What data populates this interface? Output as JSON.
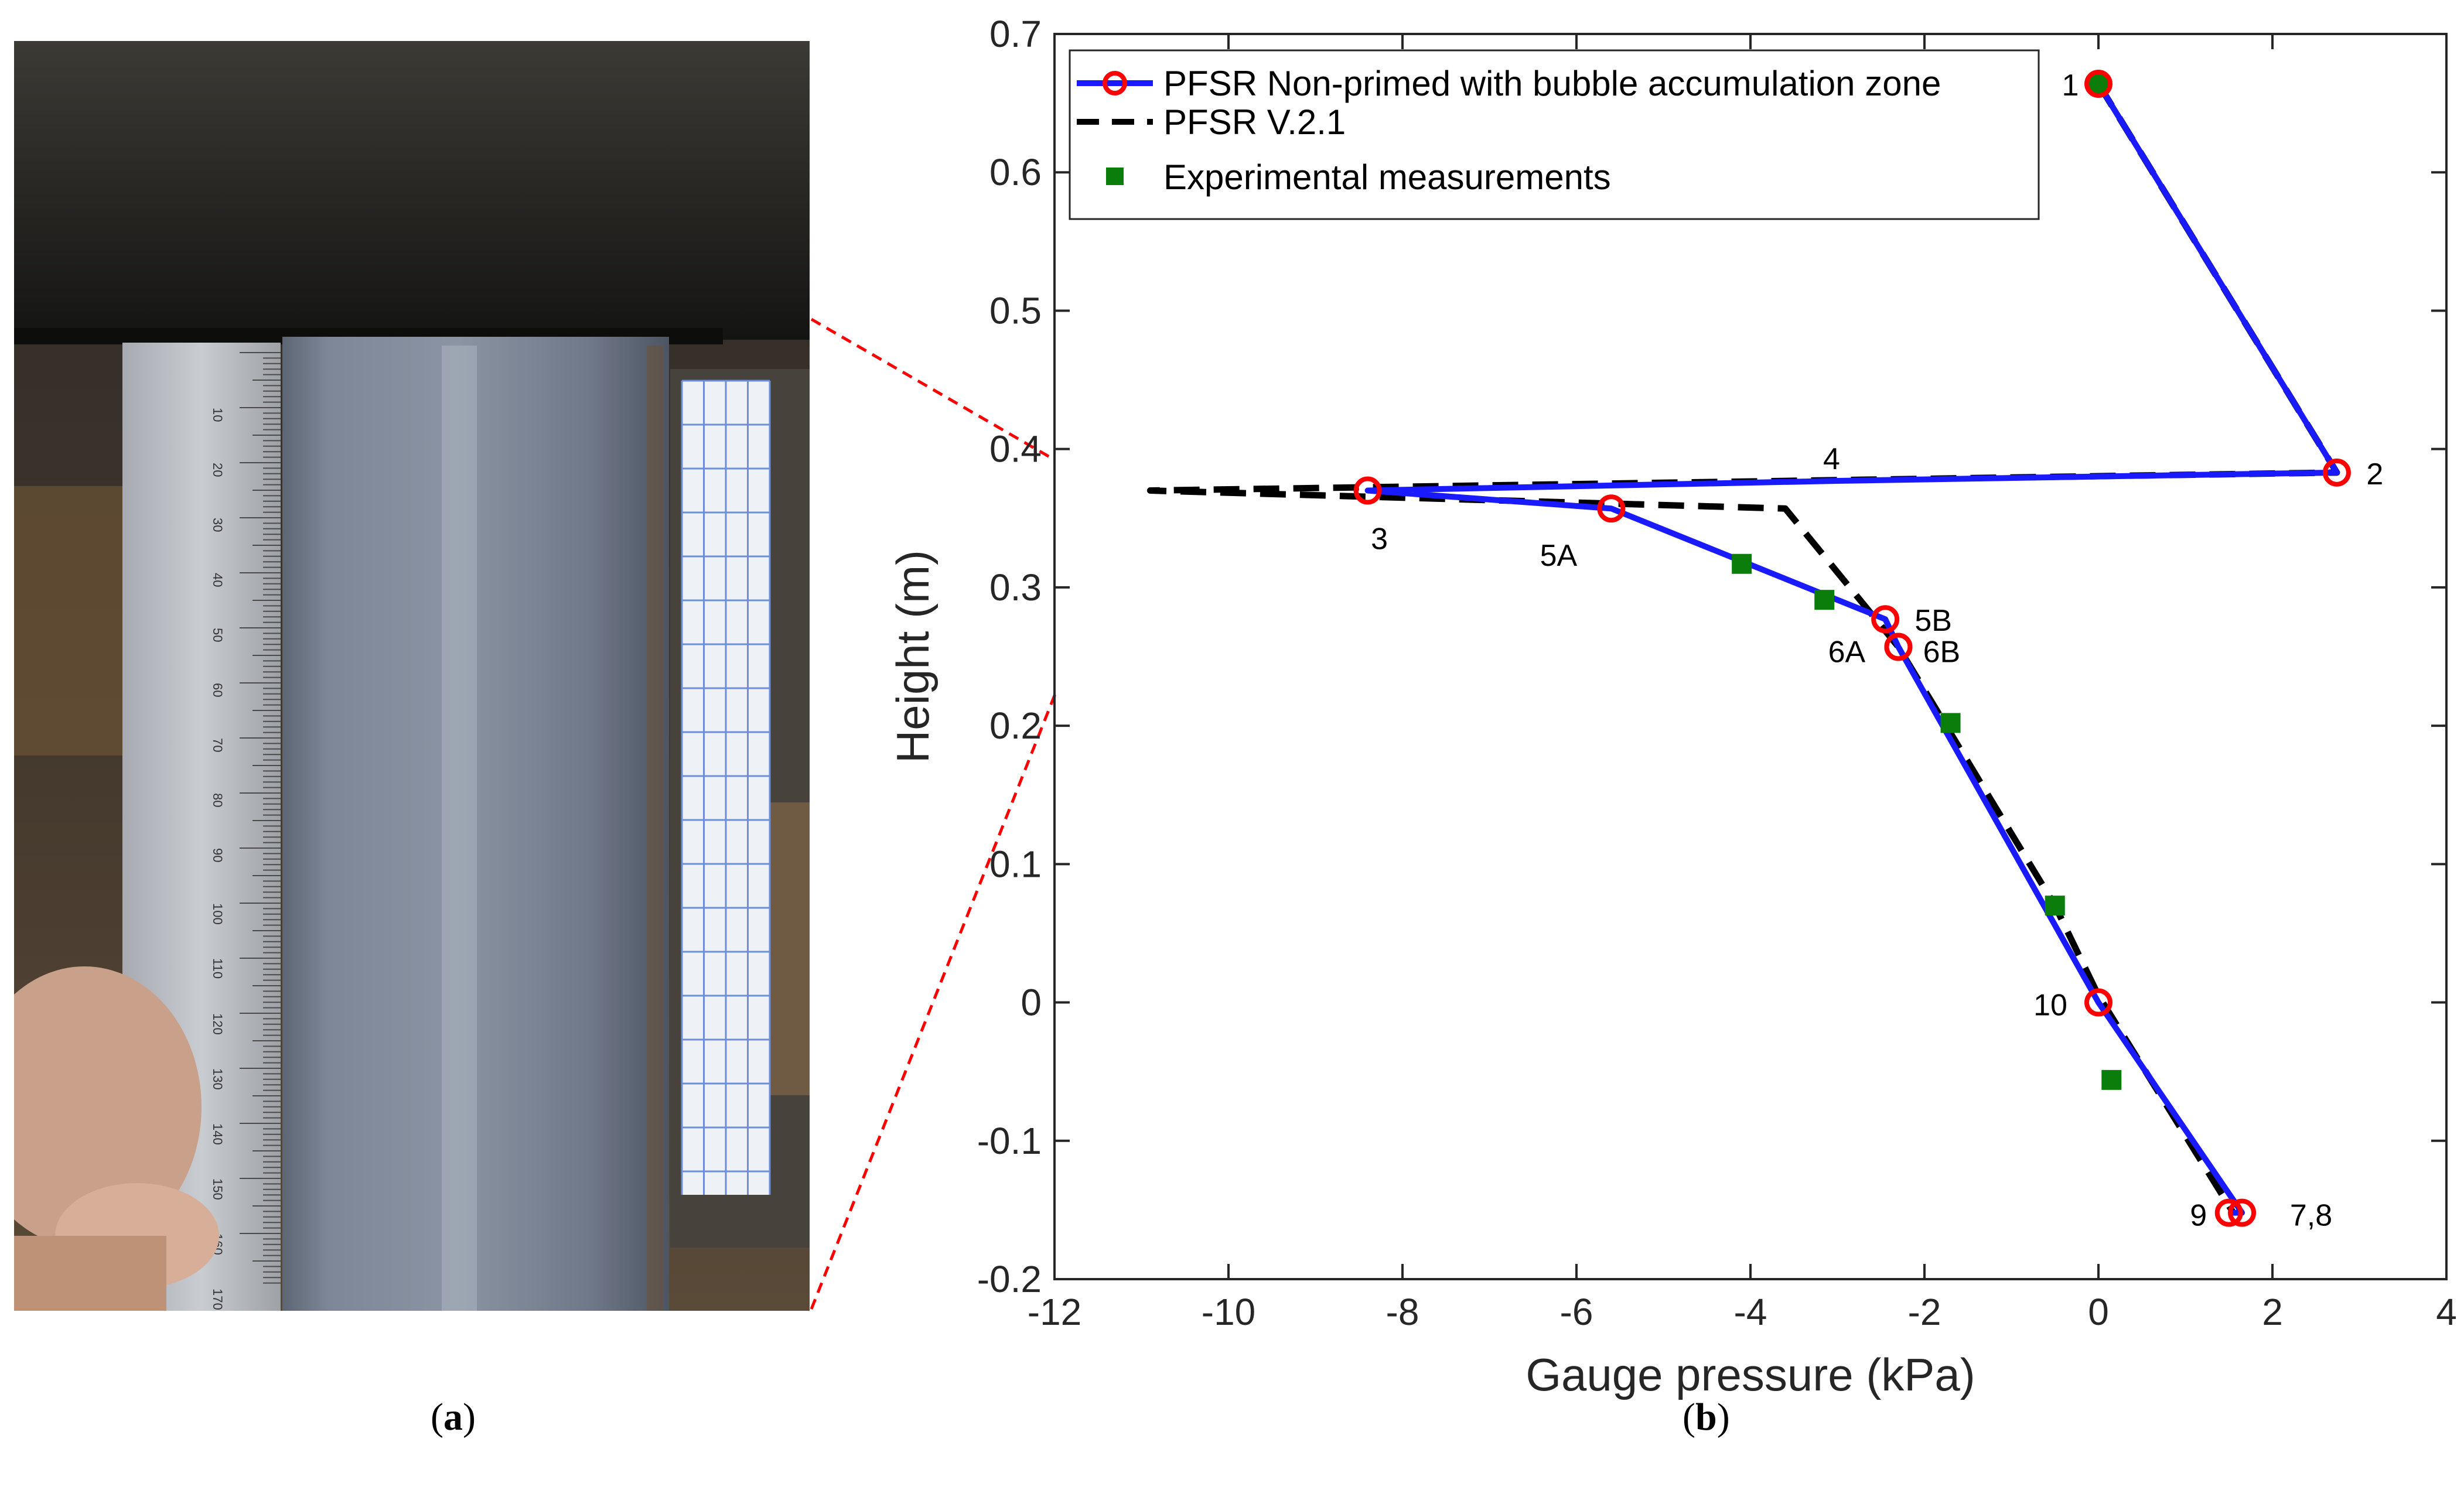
{
  "panels": {
    "a": {
      "caption": "a"
    },
    "b": {
      "caption": "b"
    }
  },
  "ruler": {
    "tick_labels": [
      "10",
      "20",
      "30",
      "40",
      "50",
      "60",
      "70",
      "80",
      "90",
      "100",
      "110",
      "120",
      "130",
      "140",
      "150",
      "160",
      "170"
    ]
  },
  "colors": {
    "blue_line": "#1a1aff",
    "red_marker": "#ff0000",
    "green_marker": "#0b7d0b",
    "dashed": "#000000",
    "zoom_lines": "#ff0000"
  },
  "chart_data": {
    "type": "line",
    "title": "",
    "xlabel": "Gauge pressure (kPa)",
    "ylabel": "Height (m)",
    "xlim": [
      -12,
      4
    ],
    "ylim": [
      -0.2,
      0.7
    ],
    "xticks": [
      -12,
      -10,
      -8,
      -6,
      -4,
      -2,
      0,
      2,
      4
    ],
    "yticks": [
      -0.2,
      -0.1,
      0,
      0.1,
      0.2,
      0.3,
      0.4,
      0.5,
      0.6,
      0.7
    ],
    "grid": false,
    "legend_position": "top-left",
    "series": [
      {
        "name": "PFSR Non-primed with bubble accumulation zone",
        "style": "solid-with-circle-markers",
        "points": [
          {
            "label": "1",
            "x": 0,
            "y": 0.664
          },
          {
            "label": "2",
            "x": 2.74,
            "y": 0.383
          },
          {
            "label": "4",
            "x": -3,
            "y": 0.377
          },
          {
            "label": "3",
            "x": -8.4,
            "y": 0.37
          },
          {
            "label": "5A",
            "x": -5.6,
            "y": 0.357
          },
          {
            "label": "5B",
            "x": -2.45,
            "y": 0.277
          },
          {
            "label": "6A",
            "x": -2.3,
            "y": 0.257
          },
          {
            "label": "6B",
            "x": -2.3,
            "y": 0.257
          },
          {
            "label": "10",
            "x": 0,
            "y": 0
          },
          {
            "label": "7,8",
            "x": 1.65,
            "y": -0.152
          },
          {
            "label": "9",
            "x": 1.5,
            "y": -0.152
          }
        ]
      },
      {
        "name": "PFSR V.2.1",
        "style": "dashed",
        "points": [
          {
            "x": 0,
            "y": 0.664
          },
          {
            "x": 2.74,
            "y": 0.383
          },
          {
            "x": -10.9,
            "y": 0.37
          },
          {
            "x": -3.6,
            "y": 0.357
          },
          {
            "x": -2.3,
            "y": 0.257
          },
          {
            "x": -0.5,
            "y": 0.07
          },
          {
            "x": 0,
            "y": 0.005
          },
          {
            "x": 1.55,
            "y": -0.152
          }
        ]
      },
      {
        "name": "Experimental measurements",
        "style": "green-square-markers",
        "points": [
          {
            "x": 0,
            "y": 0.664
          },
          {
            "x": -4.1,
            "y": 0.317
          },
          {
            "x": -3.15,
            "y": 0.291
          },
          {
            "x": -1.7,
            "y": 0.202
          },
          {
            "x": -0.5,
            "y": 0.07
          },
          {
            "x": 0.15,
            "y": -0.056
          }
        ]
      }
    ],
    "point_annotations": [
      {
        "text": "1",
        "x": 0,
        "y": 0.664
      },
      {
        "text": "2",
        "x": 2.74,
        "y": 0.383
      },
      {
        "text": "4",
        "x": -3,
        "y": 0.377
      },
      {
        "text": "3",
        "x": -8.4,
        "y": 0.37
      },
      {
        "text": "5A",
        "x": -5.6,
        "y": 0.357
      },
      {
        "text": "5B",
        "x": -2.45,
        "y": 0.277
      },
      {
        "text": "6A",
        "x": -2.3,
        "y": 0.257
      },
      {
        "text": "6B",
        "x": -2.3,
        "y": 0.257
      },
      {
        "text": "10",
        "x": 0,
        "y": 0
      },
      {
        "text": "9",
        "x": 1.5,
        "y": -0.152
      },
      {
        "text": "7,8",
        "x": 1.65,
        "y": -0.152
      }
    ]
  }
}
